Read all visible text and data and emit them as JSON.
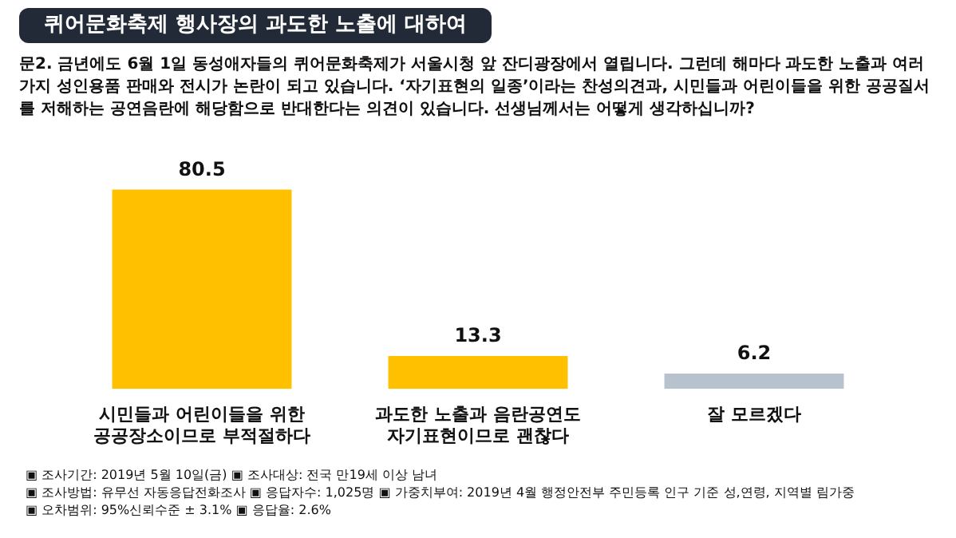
{
  "chart_data": {
    "type": "bar",
    "title": "퀴어문화축제 행사장의 과도한 노출에 대하여",
    "subtitle": "문2. 금년에도 6월 1일 동성애자들의 퀴어문화축제가 서울시청 앞 잔디광장에서 열립니다. 그런데 해마다 과도한 노출과 여러 가지 성인용품 판매와 전시가 논란이 되고 있습니다. ‘자기표현의 일종’이라는 찬성의견과, 시민들과 어린이들을 위한 공공질서를 저해하는 공연음란에 해당함으로 반대한다는 의견이 있습니다. 선생님께서는 어떻게 생각하십니까?",
    "categories": [
      "시민들과 어린이들을 위한\n공공장소이므로 부적절하다",
      "과도한 노출과 음란공연도\n자기표현이므로 괜찮다",
      "잘 모르겠다"
    ],
    "values": [
      80.5,
      13.3,
      6.2
    ],
    "colors": [
      "#ffc000",
      "#ffc000",
      "#b8c2ce"
    ],
    "data_labels": true,
    "grid": false,
    "legend": false,
    "tick_labels": "x",
    "annotations": [
      "▣ 조사기간: 2019년 5월 10일(금) ▣ 조사대상: 전국 만19세 이상 남녀",
      "▣ 조사방법: 유무선 자동응답전화조사 ▣ 응답자수: 1,025명 ▣ 가중치부여: 2019년 4월 행정안전부 주민등록 인구 기준 성,연령, 지역별 림가중",
      "▣ 오차범위: 95%신뢰수준 ± 3.1% ▣ 응답율: 2.6%"
    ]
  }
}
